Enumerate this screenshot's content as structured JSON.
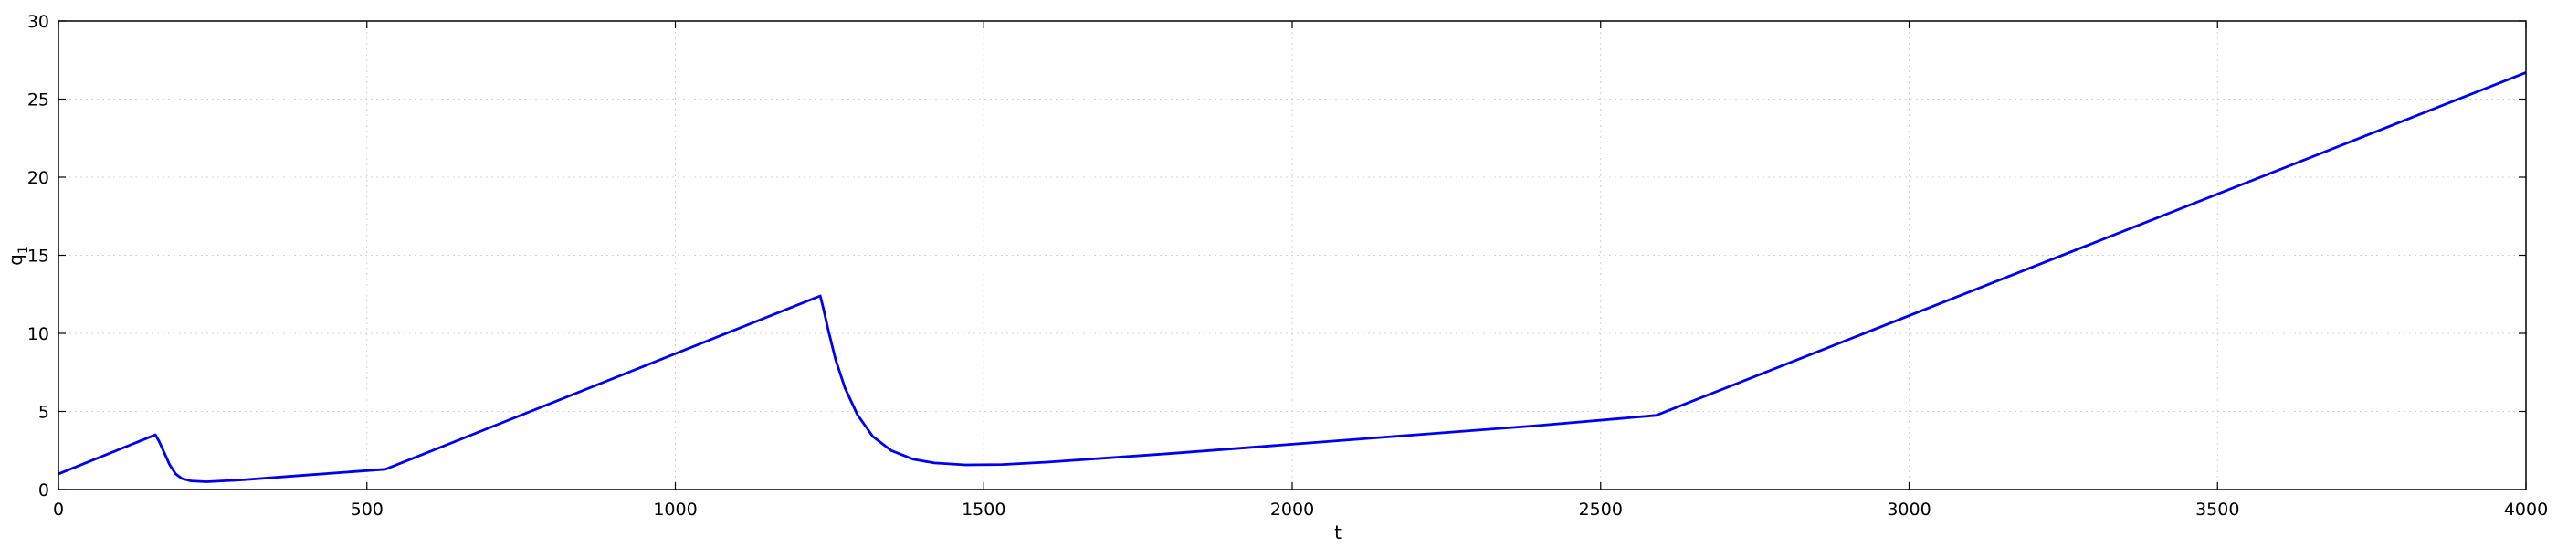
{
  "chart_data": {
    "type": "line",
    "title": "",
    "xlabel": "t",
    "ylabel": "q",
    "ylabel_sub": "1",
    "xlim": [
      0,
      4000
    ],
    "ylim": [
      0,
      30
    ],
    "xticks": [
      0,
      500,
      1000,
      1500,
      2000,
      2500,
      3000,
      3500,
      4000
    ],
    "yticks": [
      0,
      5,
      10,
      15,
      20,
      25,
      30
    ],
    "grid": true,
    "series": [
      {
        "color": "#0000ee",
        "points": [
          [
            0,
            1.0
          ],
          [
            157,
            3.5
          ],
          [
            163,
            3.1
          ],
          [
            170,
            2.5
          ],
          [
            180,
            1.6
          ],
          [
            190,
            1.0
          ],
          [
            200,
            0.7
          ],
          [
            215,
            0.55
          ],
          [
            240,
            0.5
          ],
          [
            300,
            0.62
          ],
          [
            400,
            0.92
          ],
          [
            530,
            1.3
          ],
          [
            1235,
            12.4
          ],
          [
            1240,
            11.6
          ],
          [
            1248,
            10.2
          ],
          [
            1260,
            8.3
          ],
          [
            1275,
            6.5
          ],
          [
            1295,
            4.8
          ],
          [
            1320,
            3.4
          ],
          [
            1350,
            2.5
          ],
          [
            1385,
            1.95
          ],
          [
            1420,
            1.7
          ],
          [
            1470,
            1.58
          ],
          [
            1530,
            1.6
          ],
          [
            1600,
            1.75
          ],
          [
            1800,
            2.3
          ],
          [
            2000,
            2.9
          ],
          [
            2200,
            3.5
          ],
          [
            2400,
            4.1
          ],
          [
            2590,
            4.75
          ],
          [
            4000,
            26.7
          ]
        ]
      }
    ]
  }
}
